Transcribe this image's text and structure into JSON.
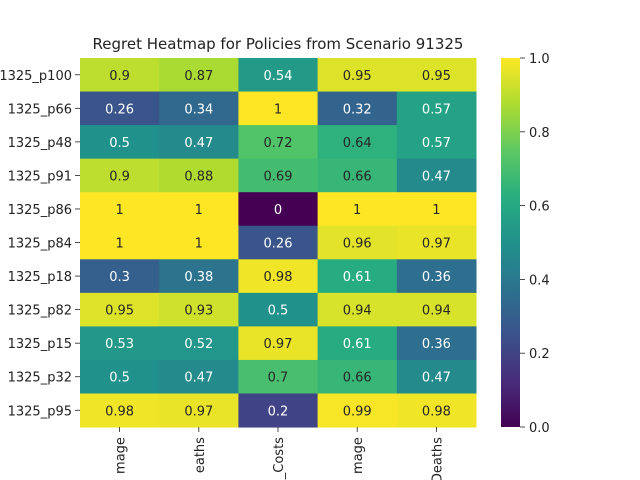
{
  "chart_data": {
    "type": "heatmap",
    "title": "Regret Heatmap for Policies from Scenario 91325",
    "rows": [
      "1325_p100",
      "1325_p66",
      "1325_p48",
      "1325_p91",
      "1325_p86",
      "1325_p84",
      "1325_p18",
      "1325_p82",
      "1325_p15",
      "1325_p32",
      "1325_p95"
    ],
    "columns": [
      "mage",
      "eaths",
      "_Costs",
      "mage",
      "Deaths"
    ],
    "values": [
      [
        0.9,
        0.87,
        0.54,
        0.95,
        0.95
      ],
      [
        0.26,
        0.34,
        1,
        0.32,
        0.57
      ],
      [
        0.5,
        0.47,
        0.72,
        0.64,
        0.57
      ],
      [
        0.9,
        0.88,
        0.69,
        0.66,
        0.47
      ],
      [
        1,
        1,
        0,
        1,
        1
      ],
      [
        1,
        1,
        0.26,
        0.96,
        0.97
      ],
      [
        0.3,
        0.38,
        0.98,
        0.61,
        0.36
      ],
      [
        0.95,
        0.93,
        0.5,
        0.94,
        0.94
      ],
      [
        0.53,
        0.52,
        0.97,
        0.61,
        0.36
      ],
      [
        0.5,
        0.47,
        0.7,
        0.66,
        0.47
      ],
      [
        0.98,
        0.97,
        0.2,
        0.99,
        0.98
      ]
    ],
    "colormap": "viridis",
    "colorbar": {
      "range": [
        0.0,
        1.0
      ],
      "ticks": [
        "0.0",
        "0.2",
        "0.4",
        "0.6",
        "0.8",
        "1.0"
      ]
    }
  }
}
